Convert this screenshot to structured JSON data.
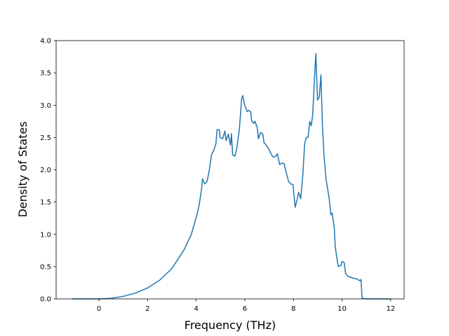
{
  "chart_data": {
    "type": "line",
    "xlabel": "Frequency (THz)",
    "ylabel": "Density of States",
    "xlim": [
      -1.76,
      12.55
    ],
    "ylim": [
      0,
      4.0
    ],
    "xticks": [
      0,
      2,
      4,
      6,
      8,
      10,
      12
    ],
    "yticks": [
      {
        "value": 0,
        "label": "0.0"
      },
      {
        "value": 0.5,
        "label": "0.5"
      },
      {
        "value": 1,
        "label": "1.0"
      },
      {
        "value": 1.5,
        "label": "1.5"
      },
      {
        "value": 2,
        "label": "2.0"
      },
      {
        "value": 2.5,
        "label": "2.5"
      },
      {
        "value": 3,
        "label": "3.0"
      },
      {
        "value": 3.5,
        "label": "3.5"
      },
      {
        "value": 4,
        "label": "4.0"
      }
    ],
    "grid": false,
    "series": [
      {
        "color": "#1f77b4",
        "x": [
          -1.1,
          -0.5,
          0,
          0.5,
          1.0,
          1.5,
          2.0,
          2.5,
          3.0,
          3.5,
          3.8,
          4.03,
          4.12,
          4.22,
          4.26,
          4.35,
          4.45,
          4.54,
          4.63,
          4.72,
          4.81,
          4.86,
          4.95,
          4.98,
          5.09,
          5.18,
          5.23,
          5.32,
          5.41,
          5.45,
          5.5,
          5.59,
          5.68,
          5.78,
          5.87,
          5.91,
          6.01,
          6.1,
          6.14,
          6.24,
          6.28,
          6.37,
          6.42,
          6.51,
          6.56,
          6.65,
          6.74,
          6.79,
          6.88,
          6.97,
          7.06,
          7.15,
          7.25,
          7.34,
          7.43,
          7.52,
          7.61,
          7.7,
          7.8,
          7.89,
          7.98,
          8.07,
          8.16,
          8.21,
          8.3,
          8.39,
          8.46,
          8.53,
          8.6,
          8.67,
          8.73,
          8.79,
          8.85,
          8.92,
          8.99,
          9.06,
          9.13,
          9.19,
          9.26,
          9.34,
          9.4,
          9.47,
          9.54,
          9.59,
          9.68,
          9.72,
          9.82,
          9.86,
          9.95,
          10.0,
          10.09,
          10.14,
          10.23,
          10.32,
          10.46,
          10.6,
          10.73,
          10.78,
          10.82,
          11.0,
          12.0
        ],
        "values": [
          0,
          0,
          0,
          0.01,
          0.04,
          0.09,
          0.17,
          0.29,
          0.47,
          0.76,
          1.0,
          1.3,
          1.45,
          1.7,
          1.86,
          1.78,
          1.82,
          2.0,
          2.23,
          2.3,
          2.4,
          2.62,
          2.62,
          2.5,
          2.48,
          2.6,
          2.45,
          2.55,
          2.38,
          2.56,
          2.23,
          2.21,
          2.35,
          2.65,
          3.1,
          3.15,
          2.98,
          2.9,
          2.92,
          2.9,
          2.75,
          2.72,
          2.75,
          2.65,
          2.48,
          2.58,
          2.55,
          2.42,
          2.38,
          2.33,
          2.26,
          2.2,
          2.2,
          2.25,
          2.08,
          2.1,
          2.1,
          1.96,
          1.82,
          1.78,
          1.77,
          1.42,
          1.55,
          1.65,
          1.55,
          1.95,
          2.4,
          2.5,
          2.5,
          2.75,
          2.68,
          2.85,
          3.3,
          3.8,
          3.08,
          3.12,
          3.47,
          2.7,
          2.2,
          1.85,
          1.72,
          1.55,
          1.3,
          1.33,
          1.1,
          0.8,
          0.55,
          0.5,
          0.52,
          0.58,
          0.56,
          0.4,
          0.35,
          0.34,
          0.32,
          0.31,
          0.28,
          0.3,
          0.01,
          0,
          0
        ]
      }
    ]
  }
}
